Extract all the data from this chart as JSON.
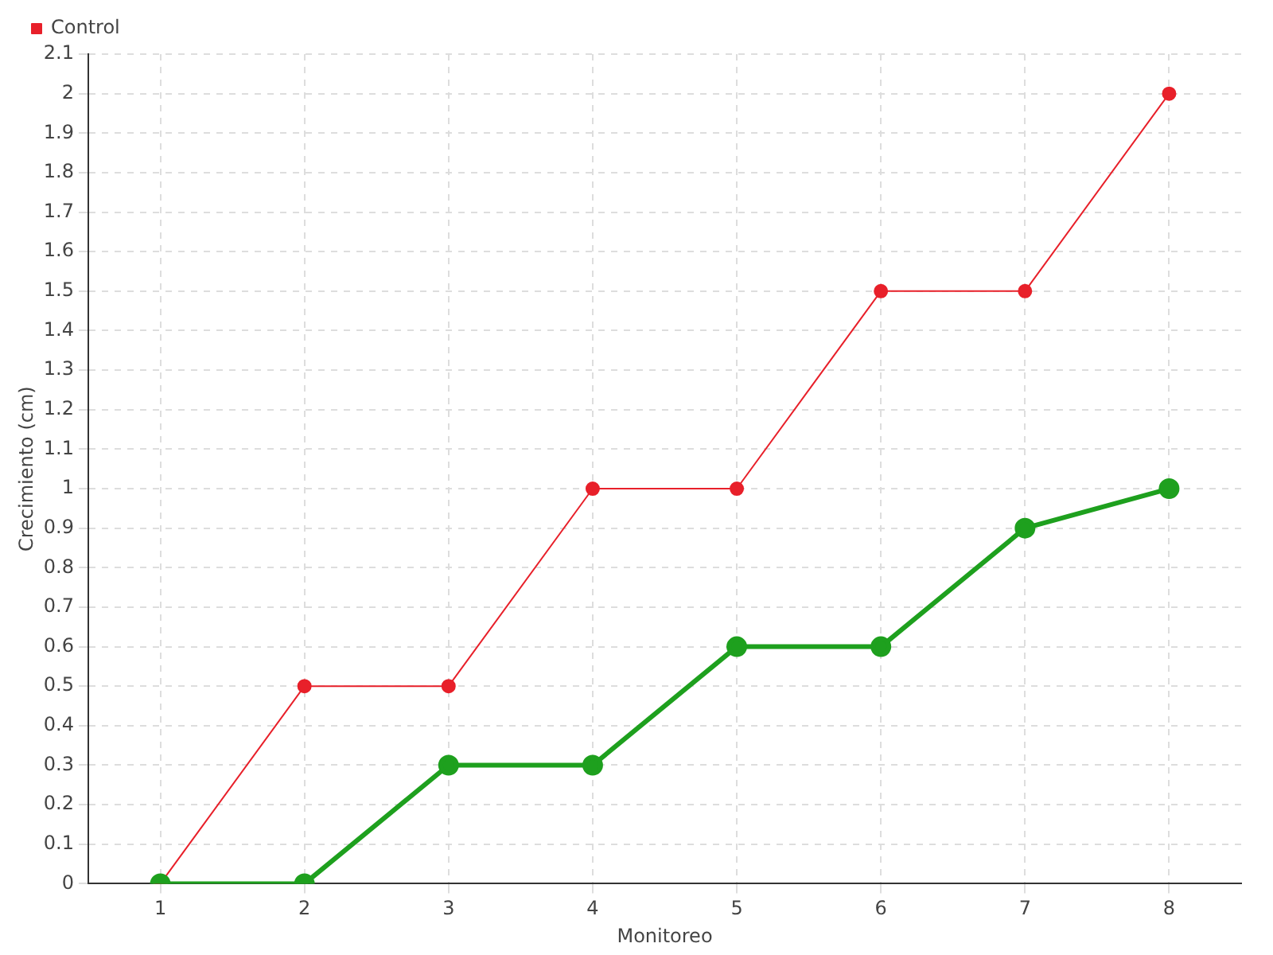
{
  "chart_data": {
    "type": "line",
    "xlabel": "Monitoreo",
    "ylabel": "Crecimiento (cm)",
    "categories": [
      "1",
      "2",
      "3",
      "4",
      "5",
      "6",
      "7",
      "8"
    ],
    "series": [
      {
        "color": "#1ea01e",
        "values": [
          0,
          0,
          0.3,
          0.3,
          0.6,
          0.6,
          0.9,
          1
        ]
      },
      {
        "name": "Control",
        "color": "#e8202a",
        "values": [
          0,
          0.5,
          0.5,
          1,
          1,
          1.5,
          1.5,
          2
        ]
      }
    ],
    "ylim": [
      0,
      2.1
    ],
    "yticks": [
      0,
      0.1,
      0.2,
      0.3,
      0.4,
      0.5,
      0.6,
      0.7,
      0.8,
      0.9,
      1,
      1.1,
      1.2,
      1.3,
      1.4,
      1.5,
      1.6,
      1.7,
      1.8,
      1.9,
      2,
      2.1
    ],
    "grid": true,
    "legend": "top left",
    "marker": "circle",
    "line_style": "solid"
  }
}
